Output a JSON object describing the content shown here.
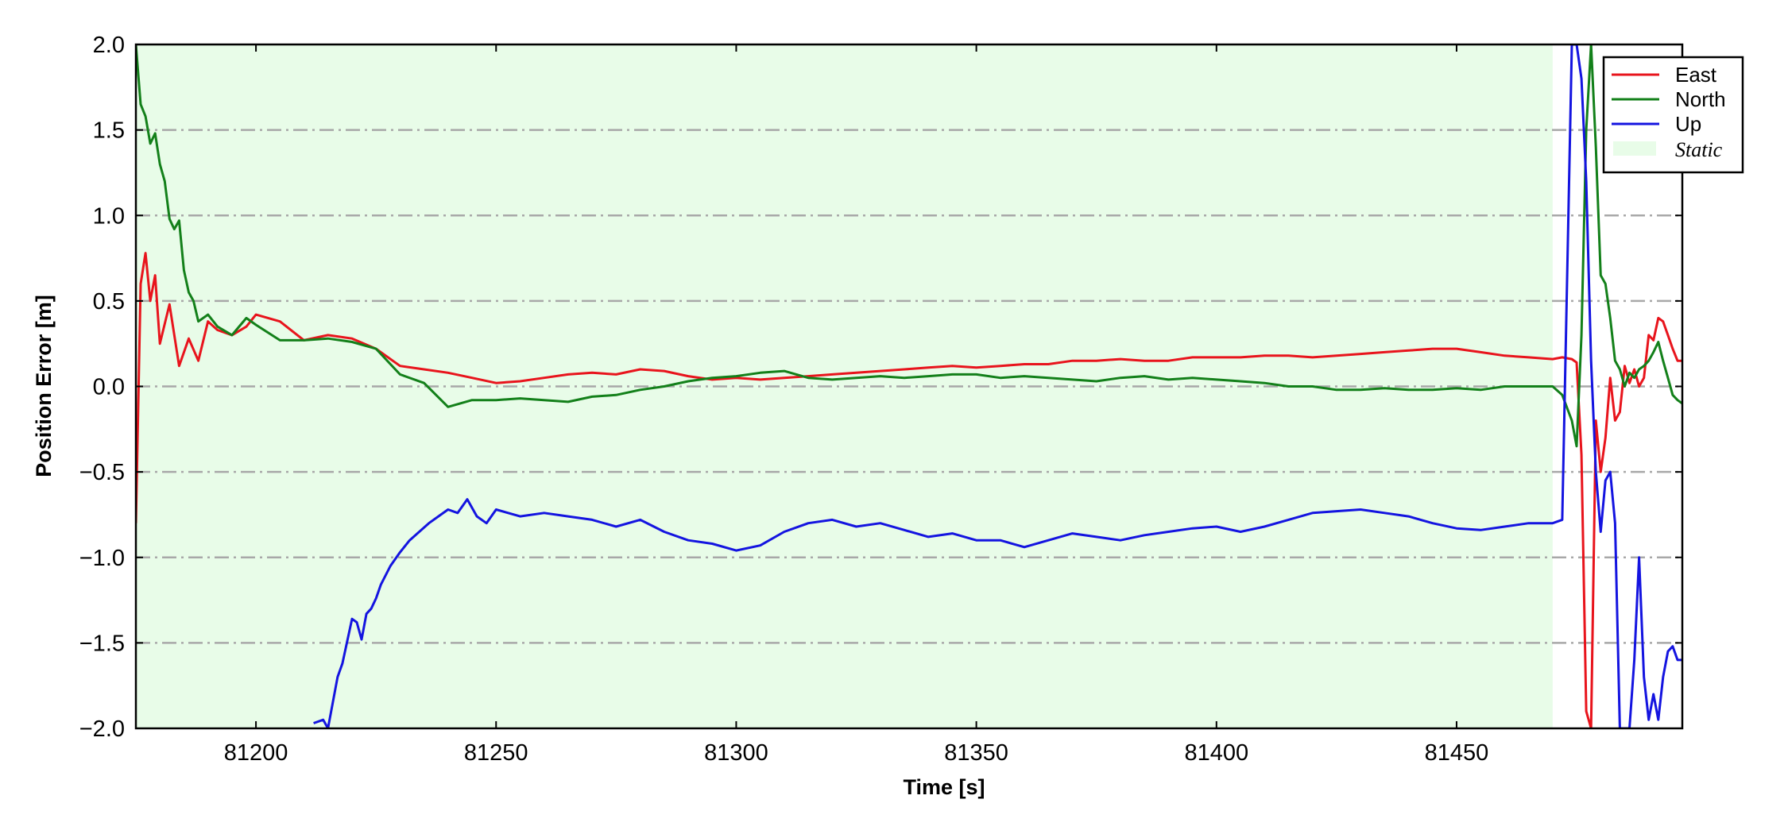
{
  "chart_data": {
    "type": "line",
    "xlabel": "Time [s]",
    "ylabel": "Position Error [m]",
    "xlim": [
      81175,
      81497
    ],
    "ylim": [
      -2.0,
      2.0
    ],
    "xticks": [
      81200,
      81250,
      81300,
      81350,
      81400,
      81450
    ],
    "xtick_labels": [
      "81200",
      "81250",
      "81300",
      "81350",
      "81400",
      "81450"
    ],
    "yticks": [
      -2.0,
      -1.5,
      -1.0,
      -0.5,
      0.0,
      0.5,
      1.0,
      1.5,
      2.0
    ],
    "ytick_labels": [
      "−2.0",
      "−1.5",
      "−1.0",
      "−0.5",
      "0.0",
      "0.5",
      "1.0",
      "1.5",
      "2.0"
    ],
    "grid": "horizontal dash-dot",
    "legend_position": "top-right",
    "static_region": {
      "label": "Static",
      "x_start": 81175,
      "x_end": 81470,
      "color": "#e8fce8"
    },
    "series": [
      {
        "name": "East",
        "color": "#e8141c",
        "x": [
          81175,
          81176,
          81177,
          81178,
          81179,
          81180,
          81182,
          81184,
          81186,
          81188,
          81190,
          81192,
          81195,
          81198,
          81200,
          81205,
          81210,
          81215,
          81220,
          81225,
          81230,
          81235,
          81240,
          81245,
          81250,
          81255,
          81260,
          81265,
          81270,
          81275,
          81280,
          81285,
          81290,
          81295,
          81300,
          81305,
          81310,
          81315,
          81320,
          81325,
          81330,
          81335,
          81340,
          81345,
          81350,
          81355,
          81360,
          81365,
          81370,
          81375,
          81380,
          81385,
          81390,
          81395,
          81400,
          81405,
          81410,
          81415,
          81420,
          81425,
          81430,
          81435,
          81440,
          81445,
          81450,
          81455,
          81460,
          81465,
          81470,
          81472,
          81474,
          81475,
          81476,
          81477,
          81478,
          81479,
          81480,
          81481,
          81482,
          81483,
          81484,
          81485,
          81486,
          81487,
          81488,
          81489,
          81490,
          81491,
          81492,
          81493,
          81494,
          81495,
          81496,
          81497
        ],
        "y": [
          -0.8,
          0.6,
          0.78,
          0.5,
          0.65,
          0.25,
          0.48,
          0.12,
          0.28,
          0.15,
          0.38,
          0.33,
          0.3,
          0.35,
          0.42,
          0.38,
          0.27,
          0.3,
          0.28,
          0.22,
          0.12,
          0.1,
          0.08,
          0.05,
          0.02,
          0.03,
          0.05,
          0.07,
          0.08,
          0.07,
          0.1,
          0.09,
          0.06,
          0.04,
          0.05,
          0.04,
          0.05,
          0.06,
          0.07,
          0.08,
          0.09,
          0.1,
          0.11,
          0.12,
          0.11,
          0.12,
          0.13,
          0.13,
          0.15,
          0.15,
          0.16,
          0.15,
          0.15,
          0.17,
          0.17,
          0.17,
          0.18,
          0.18,
          0.17,
          0.18,
          0.19,
          0.2,
          0.21,
          0.22,
          0.22,
          0.2,
          0.18,
          0.17,
          0.16,
          0.17,
          0.16,
          0.14,
          -0.4,
          -1.9,
          -2.0,
          -0.2,
          -0.5,
          -0.3,
          0.05,
          -0.2,
          -0.15,
          0.12,
          0.02,
          0.1,
          0.0,
          0.05,
          0.3,
          0.27,
          0.4,
          0.38,
          0.3,
          0.22,
          0.15,
          0.15
        ]
      },
      {
        "name": "North",
        "color": "#13801a",
        "x": [
          81175,
          81176,
          81177,
          81178,
          81179,
          81180,
          81181,
          81182,
          81183,
          81184,
          81185,
          81186,
          81187,
          81188,
          81190,
          81192,
          81195,
          81198,
          81200,
          81205,
          81210,
          81215,
          81220,
          81225,
          81230,
          81235,
          81240,
          81245,
          81250,
          81255,
          81260,
          81265,
          81270,
          81275,
          81280,
          81285,
          81290,
          81295,
          81300,
          81305,
          81310,
          81315,
          81320,
          81325,
          81330,
          81335,
          81340,
          81345,
          81350,
          81355,
          81360,
          81365,
          81370,
          81375,
          81380,
          81385,
          81390,
          81395,
          81400,
          81405,
          81410,
          81415,
          81420,
          81425,
          81430,
          81435,
          81440,
          81445,
          81450,
          81455,
          81460,
          81465,
          81470,
          81472,
          81474,
          81475,
          81476,
          81477,
          81478,
          81479,
          81480,
          81481,
          81482,
          81483,
          81484,
          81485,
          81486,
          81487,
          81488,
          81489,
          81490,
          81491,
          81492,
          81493,
          81494,
          81495,
          81496,
          81497
        ],
        "y": [
          2.0,
          1.65,
          1.58,
          1.42,
          1.48,
          1.3,
          1.2,
          0.98,
          0.92,
          0.97,
          0.68,
          0.55,
          0.5,
          0.38,
          0.42,
          0.35,
          0.3,
          0.4,
          0.36,
          0.27,
          0.27,
          0.28,
          0.26,
          0.22,
          0.07,
          0.02,
          -0.12,
          -0.08,
          -0.08,
          -0.07,
          -0.08,
          -0.09,
          -0.06,
          -0.05,
          -0.02,
          0.0,
          0.03,
          0.05,
          0.06,
          0.08,
          0.09,
          0.05,
          0.04,
          0.05,
          0.06,
          0.05,
          0.06,
          0.07,
          0.07,
          0.05,
          0.06,
          0.05,
          0.04,
          0.03,
          0.05,
          0.06,
          0.04,
          0.05,
          0.04,
          0.03,
          0.02,
          0.0,
          0.0,
          -0.02,
          -0.02,
          -0.01,
          -0.02,
          -0.02,
          -0.01,
          -0.02,
          0.0,
          0.0,
          0.0,
          -0.05,
          -0.2,
          -0.35,
          0.3,
          1.5,
          2.0,
          1.4,
          0.65,
          0.6,
          0.4,
          0.15,
          0.1,
          0.0,
          0.08,
          0.05,
          0.1,
          0.12,
          0.15,
          0.2,
          0.26,
          0.15,
          0.05,
          -0.05,
          -0.08,
          -0.1
        ]
      },
      {
        "name": "Up",
        "color": "#1414e0",
        "x": [
          81212,
          81214,
          81215,
          81217,
          81218,
          81220,
          81221,
          81222,
          81223,
          81224,
          81225,
          81226,
          81228,
          81230,
          81232,
          81234,
          81236,
          81238,
          81240,
          81242,
          81244,
          81246,
          81248,
          81250,
          81255,
          81260,
          81265,
          81270,
          81275,
          81280,
          81285,
          81290,
          81295,
          81300,
          81305,
          81310,
          81315,
          81320,
          81325,
          81330,
          81335,
          81340,
          81345,
          81350,
          81355,
          81360,
          81365,
          81370,
          81375,
          81380,
          81385,
          81390,
          81395,
          81400,
          81405,
          81410,
          81415,
          81420,
          81425,
          81430,
          81435,
          81440,
          81445,
          81450,
          81455,
          81460,
          81465,
          81470,
          81472,
          81474,
          81475,
          81476,
          81477,
          81478,
          81479,
          81480,
          81481,
          81482,
          81483,
          81484,
          81485,
          81486,
          81487,
          81488,
          81489,
          81490,
          81491,
          81492,
          81493,
          81494,
          81495,
          81496,
          81497
        ],
        "y": [
          -1.97,
          -1.95,
          -2.0,
          -1.7,
          -1.62,
          -1.36,
          -1.38,
          -1.48,
          -1.33,
          -1.3,
          -1.24,
          -1.16,
          -1.05,
          -0.97,
          -0.9,
          -0.85,
          -0.8,
          -0.76,
          -0.72,
          -0.74,
          -0.66,
          -0.76,
          -0.8,
          -0.72,
          -0.76,
          -0.74,
          -0.76,
          -0.78,
          -0.82,
          -0.78,
          -0.85,
          -0.9,
          -0.92,
          -0.96,
          -0.93,
          -0.85,
          -0.8,
          -0.78,
          -0.82,
          -0.8,
          -0.84,
          -0.88,
          -0.86,
          -0.9,
          -0.9,
          -0.94,
          -0.9,
          -0.86,
          -0.88,
          -0.9,
          -0.87,
          -0.85,
          -0.83,
          -0.82,
          -0.85,
          -0.82,
          -0.78,
          -0.74,
          -0.73,
          -0.72,
          -0.74,
          -0.76,
          -0.8,
          -0.83,
          -0.84,
          -0.82,
          -0.8,
          -0.8,
          -0.78,
          2.0,
          2.0,
          1.8,
          1.2,
          0.15,
          -0.5,
          -0.85,
          -0.55,
          -0.5,
          -0.8,
          -2.0,
          -2.0,
          -2.0,
          -1.6,
          -1.0,
          -1.7,
          -1.95,
          -1.8,
          -1.95,
          -1.7,
          -1.55,
          -1.52,
          -1.6,
          -1.6
        ]
      }
    ]
  }
}
